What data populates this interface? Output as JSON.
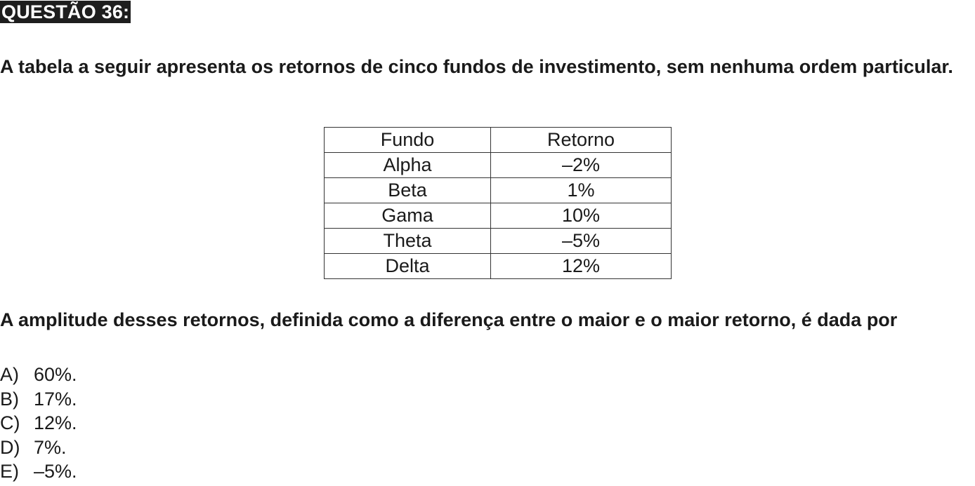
{
  "header": {
    "title": "QUESTÃO 36:"
  },
  "intro": {
    "text": "A tabela a seguir apresenta os retornos de cinco fundos de investimento, sem nenhuma ordem particular."
  },
  "table": {
    "headers": [
      "Fundo",
      "Retorno"
    ],
    "rows": [
      [
        "Alpha",
        "–2%"
      ],
      [
        "Beta",
        "1%"
      ],
      [
        "Gama",
        "10%"
      ],
      [
        "Theta",
        "–5%"
      ],
      [
        "Delta",
        "12%"
      ]
    ]
  },
  "question": {
    "text": "A amplitude desses retornos, definida como a diferença entre o maior e o maior retorno, é dada por"
  },
  "options": [
    {
      "letter": "A)",
      "text": "60%."
    },
    {
      "letter": "B)",
      "text": "17%."
    },
    {
      "letter": "C)",
      "text": "12%."
    },
    {
      "letter": "D)",
      "text": "7%."
    },
    {
      "letter": "E)",
      "text": "–5%."
    }
  ]
}
